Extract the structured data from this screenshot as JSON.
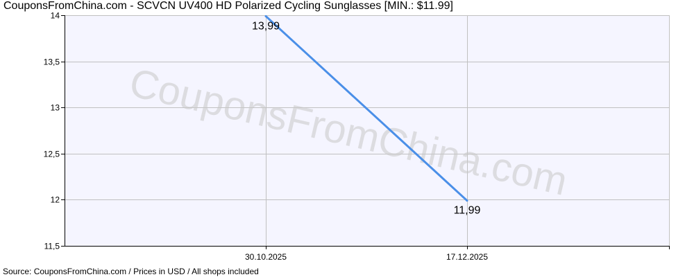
{
  "chart_data": {
    "type": "line",
    "title": "CouponsFromChina.com - SCVCN UV400 HD Polarized Cycling Sunglasses [MIN.: $11.99]",
    "footer": "Source: CouponsFromChina.com / Prices in USD / All shops included",
    "watermark": "CouponsFromChina.com",
    "x": [
      "30.10.2025",
      "17.12.2025"
    ],
    "series": [
      {
        "values": [
          13.99,
          11.99
        ],
        "labels": [
          "13,99",
          "11,99"
        ],
        "color": "#4a8fe8"
      }
    ],
    "ylim": [
      11.5,
      14
    ],
    "yticks": [
      11.5,
      12,
      12.5,
      13,
      13.5,
      14
    ],
    "ytick_labels": [
      "11,5",
      "12",
      "12,5",
      "13",
      "13,5",
      "14"
    ],
    "grid": true,
    "plot_background": "#f5f5ff",
    "grid_color": "#c0c0c0"
  }
}
